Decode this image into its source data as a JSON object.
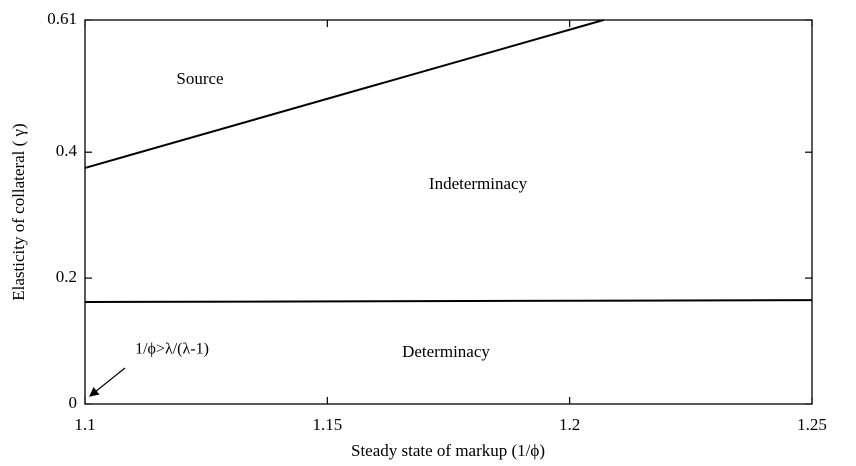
{
  "chart_data": {
    "type": "line",
    "x_label": "Steady state of markup (1/ϕ)",
    "y_label": "Elasticity of collateral ( γ)",
    "xlim": [
      1.1,
      1.25
    ],
    "ylim": [
      0,
      0.61
    ],
    "xticks": [
      1.1,
      1.15,
      1.2,
      1.25
    ],
    "yticks": [
      0,
      0.2,
      0.4,
      0.61
    ],
    "series": [
      {
        "color": "#000000",
        "x": [
          1.1,
          1.207
        ],
        "values": [
          0.375,
          0.61
        ]
      },
      {
        "color": "#000000",
        "x": [
          1.1,
          1.25
        ],
        "values": [
          0.162,
          0.165
        ]
      }
    ],
    "annotations": [
      "Source",
      "Indeterminacy",
      "Determinacy",
      "1/ϕ>λ/(λ-1)"
    ]
  }
}
